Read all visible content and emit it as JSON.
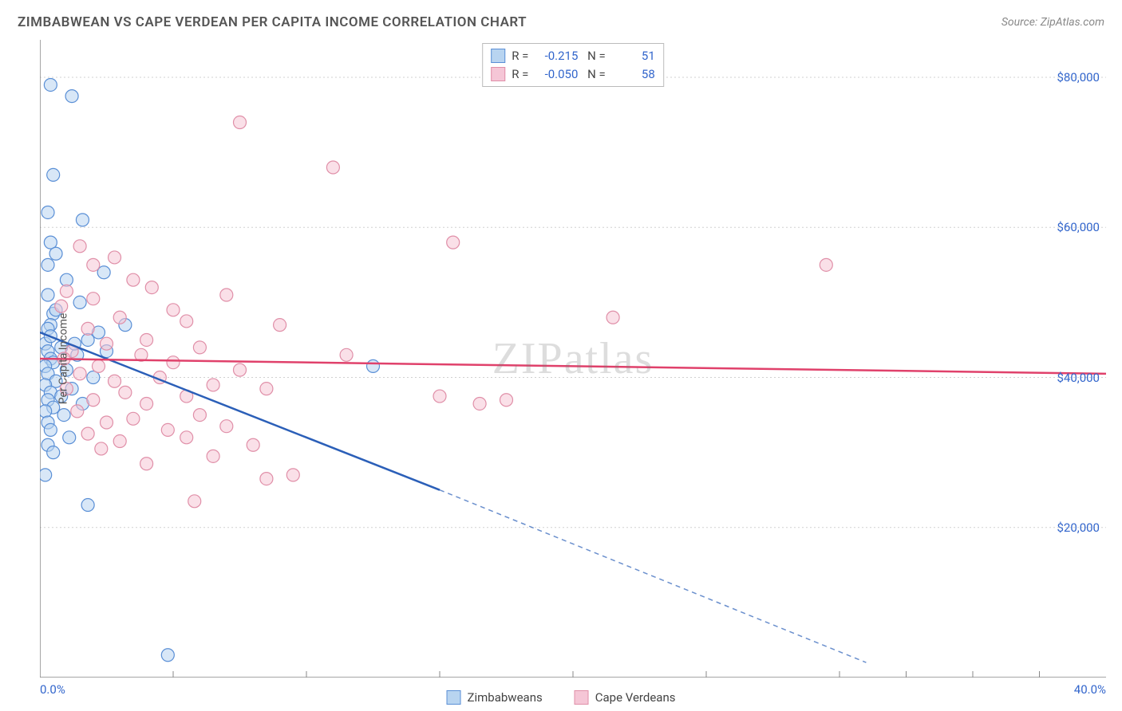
{
  "header": {
    "title": "ZIMBABWEAN VS CAPE VERDEAN PER CAPITA INCOME CORRELATION CHART",
    "source": "Source: ZipAtlas.com"
  },
  "watermark": "ZIPatlas",
  "chart": {
    "type": "scatter",
    "y_label": "Per Capita Income",
    "x_range": [
      0,
      40
    ],
    "y_range": [
      0,
      85000
    ],
    "x_ticks": [
      {
        "v": 0,
        "label": "0.0%"
      },
      {
        "v": 40,
        "label": "40.0%"
      }
    ],
    "x_minor_ticks": [
      5,
      10,
      15,
      20,
      25,
      30,
      32.5,
      35,
      37.5
    ],
    "y_gridlines": [
      {
        "v": 20000,
        "label": "$20,000"
      },
      {
        "v": 40000,
        "label": "$40,000"
      },
      {
        "v": 60000,
        "label": "$60,000"
      },
      {
        "v": 80000,
        "label": "$80,000"
      }
    ],
    "grid_color": "#d0d0d0",
    "axis_color": "#888",
    "background": "#ffffff",
    "tick_label_color": "#3366cc",
    "marker_radius": 8,
    "series": [
      {
        "name": "Zimbabweans",
        "fill": "#b8d4f0",
        "stroke": "#5a8fd6",
        "line_color": "#2b5fb8",
        "R": "-0.215",
        "N": "51",
        "trend": {
          "x1": 0,
          "y1": 46000,
          "x2_solid": 15,
          "y2_solid": 25000,
          "x2": 31,
          "y2": 2000
        },
        "points": [
          [
            0.4,
            79000
          ],
          [
            1.2,
            77500
          ],
          [
            0.5,
            67000
          ],
          [
            0.3,
            62000
          ],
          [
            1.6,
            61000
          ],
          [
            0.4,
            58000
          ],
          [
            0.6,
            56500
          ],
          [
            0.3,
            55000
          ],
          [
            2.4,
            54000
          ],
          [
            1.0,
            53000
          ],
          [
            0.3,
            51000
          ],
          [
            1.5,
            50000
          ],
          [
            0.5,
            48500
          ],
          [
            0.4,
            47000
          ],
          [
            2.2,
            46000
          ],
          [
            1.8,
            45000
          ],
          [
            0.2,
            44500
          ],
          [
            0.8,
            44000
          ],
          [
            0.3,
            43500
          ],
          [
            1.4,
            43000
          ],
          [
            0.4,
            42500
          ],
          [
            3.2,
            47000
          ],
          [
            0.5,
            42000
          ],
          [
            0.2,
            41500
          ],
          [
            1.0,
            41000
          ],
          [
            0.3,
            40500
          ],
          [
            2.0,
            40000
          ],
          [
            0.6,
            39500
          ],
          [
            0.2,
            39000
          ],
          [
            1.2,
            38500
          ],
          [
            0.4,
            38000
          ],
          [
            0.8,
            37500
          ],
          [
            0.3,
            37000
          ],
          [
            1.6,
            36500
          ],
          [
            0.5,
            36000
          ],
          [
            0.2,
            35500
          ],
          [
            0.9,
            35000
          ],
          [
            0.3,
            34000
          ],
          [
            0.4,
            33000
          ],
          [
            1.1,
            32000
          ],
          [
            0.3,
            31000
          ],
          [
            0.5,
            30000
          ],
          [
            0.2,
            27000
          ],
          [
            1.8,
            23000
          ],
          [
            12.5,
            41500
          ],
          [
            4.8,
            3000
          ],
          [
            0.3,
            46500
          ],
          [
            0.6,
            49000
          ],
          [
            2.5,
            43500
          ],
          [
            0.4,
            45500
          ],
          [
            1.3,
            44500
          ]
        ]
      },
      {
        "name": "Cape Verdeans",
        "fill": "#f5c6d6",
        "stroke": "#e08fa8",
        "line_color": "#e0416b",
        "R": "-0.050",
        "N": "58",
        "trend": {
          "x1": 0,
          "y1": 42500,
          "x2_solid": 40,
          "y2_solid": 40500,
          "x2": 40,
          "y2": 40500
        },
        "points": [
          [
            1.5,
            57500
          ],
          [
            2.8,
            56000
          ],
          [
            29.5,
            55000
          ],
          [
            3.5,
            53000
          ],
          [
            4.2,
            52000
          ],
          [
            1.0,
            51500
          ],
          [
            2.0,
            50500
          ],
          [
            0.8,
            49500
          ],
          [
            3.0,
            48000
          ],
          [
            5.5,
            47500
          ],
          [
            21.5,
            48000
          ],
          [
            1.8,
            46500
          ],
          [
            4.0,
            45000
          ],
          [
            2.5,
            44500
          ],
          [
            6.0,
            44000
          ],
          [
            1.2,
            43500
          ],
          [
            3.8,
            43000
          ],
          [
            0.9,
            42500
          ],
          [
            5.0,
            42000
          ],
          [
            2.2,
            41500
          ],
          [
            7.5,
            41000
          ],
          [
            1.5,
            40500
          ],
          [
            4.5,
            40000
          ],
          [
            2.8,
            39500
          ],
          [
            6.5,
            39000
          ],
          [
            1.0,
            38500
          ],
          [
            3.2,
            38000
          ],
          [
            8.5,
            38500
          ],
          [
            5.5,
            37500
          ],
          [
            2.0,
            37000
          ],
          [
            4.0,
            36500
          ],
          [
            15.0,
            37500
          ],
          [
            16.5,
            36500
          ],
          [
            17.5,
            37000
          ],
          [
            1.4,
            35500
          ],
          [
            6.0,
            35000
          ],
          [
            3.5,
            34500
          ],
          [
            2.5,
            34000
          ],
          [
            7.0,
            33500
          ],
          [
            4.8,
            33000
          ],
          [
            1.8,
            32500
          ],
          [
            5.5,
            32000
          ],
          [
            3.0,
            31500
          ],
          [
            8.0,
            31000
          ],
          [
            2.3,
            30500
          ],
          [
            6.5,
            29500
          ],
          [
            4.0,
            28500
          ],
          [
            9.5,
            27000
          ],
          [
            8.5,
            26500
          ],
          [
            5.8,
            23500
          ],
          [
            7.5,
            74000
          ],
          [
            11.0,
            68000
          ],
          [
            15.5,
            58000
          ],
          [
            11.5,
            43000
          ],
          [
            9.0,
            47000
          ],
          [
            7.0,
            51000
          ],
          [
            2.0,
            55000
          ],
          [
            5.0,
            49000
          ]
        ]
      }
    ],
    "bottom_legend": [
      {
        "label": "Zimbabweans",
        "fill": "#b8d4f0",
        "stroke": "#5a8fd6"
      },
      {
        "label": "Cape Verdeans",
        "fill": "#f5c6d6",
        "stroke": "#e08fa8"
      }
    ]
  }
}
